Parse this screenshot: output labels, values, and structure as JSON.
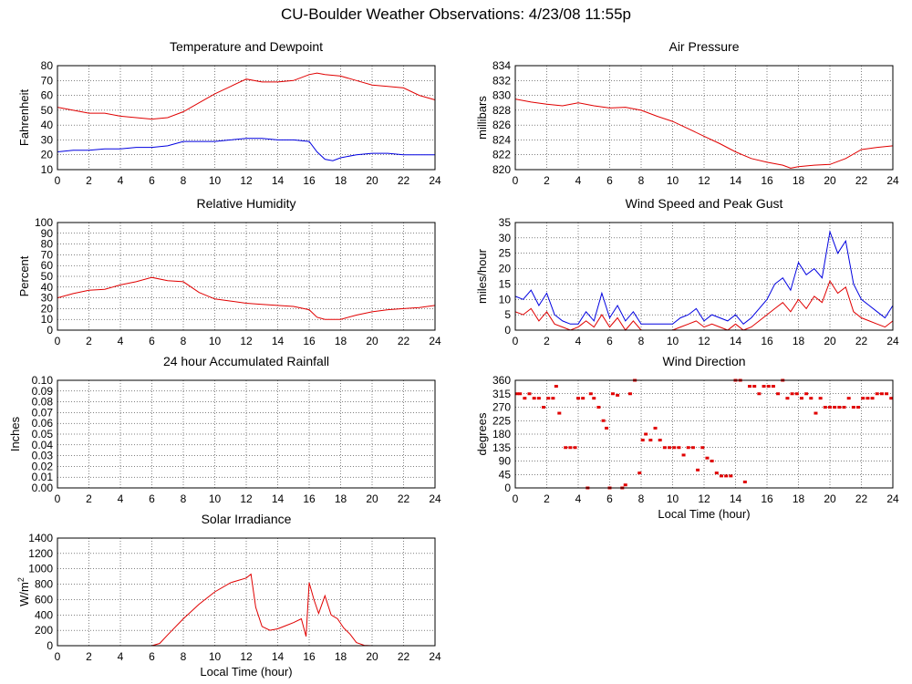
{
  "title": "CU-Boulder Weather Observations: 4/23/08 11:55p",
  "colors": {
    "red": "#e00000",
    "blue": "#0000e0"
  },
  "x_ticks": [
    "0",
    "2",
    "4",
    "6",
    "8",
    "10",
    "12",
    "14",
    "16",
    "18",
    "20",
    "22",
    "24"
  ],
  "chart_data": [
    {
      "id": "temperature",
      "type": "line",
      "title": "Temperature and Dewpoint",
      "xlabel": "",
      "ylabel": "Fahrenheit",
      "xlim": [
        0,
        24
      ],
      "ylim": [
        10,
        80
      ],
      "yticks": [
        "10",
        "20",
        "30",
        "40",
        "50",
        "60",
        "70",
        "80"
      ],
      "series": [
        {
          "color": "#e00000",
          "x": [
            0,
            1,
            2,
            3,
            4,
            5,
            6,
            7,
            8,
            9,
            10,
            11,
            12,
            13,
            14,
            15,
            16,
            16.5,
            17,
            18,
            19,
            20,
            21,
            22,
            23,
            24
          ],
          "y": [
            52,
            50,
            48,
            48,
            46,
            45,
            44,
            45,
            49,
            55,
            61,
            66,
            71,
            69,
            69,
            70,
            74,
            75,
            74,
            73,
            70,
            67,
            66,
            65,
            60,
            57
          ]
        },
        {
          "color": "#0000e0",
          "x": [
            0,
            1,
            2,
            3,
            4,
            5,
            6,
            7,
            8,
            9,
            10,
            11,
            12,
            13,
            14,
            15,
            16,
            16.5,
            17,
            17.5,
            18,
            19,
            20,
            21,
            22,
            23,
            24
          ],
          "y": [
            22,
            23,
            23,
            24,
            24,
            25,
            25,
            26,
            29,
            29,
            29,
            30,
            31,
            31,
            30,
            30,
            29,
            22,
            17,
            16,
            18,
            20,
            21,
            21,
            20,
            20,
            20
          ]
        }
      ]
    },
    {
      "id": "pressure",
      "type": "line",
      "title": "Air Pressure",
      "xlabel": "",
      "ylabel": "millibars",
      "xlim": [
        0,
        24
      ],
      "ylim": [
        820,
        834
      ],
      "yticks": [
        "820",
        "822",
        "824",
        "826",
        "828",
        "830",
        "832",
        "834"
      ],
      "series": [
        {
          "color": "#e00000",
          "x": [
            0,
            1,
            2,
            3,
            4,
            5,
            6,
            7,
            8,
            9,
            10,
            11,
            12,
            13,
            14,
            15,
            16,
            17,
            17.5,
            18,
            19,
            20,
            21,
            22,
            23,
            24
          ],
          "y": [
            829.5,
            829.1,
            828.8,
            828.6,
            829,
            828.6,
            828.3,
            828.4,
            828,
            827.2,
            826.5,
            825.5,
            824.5,
            823.5,
            822.4,
            821.5,
            821,
            820.6,
            820.2,
            820.4,
            820.6,
            820.7,
            821.5,
            822.7,
            823,
            823.2
          ]
        }
      ]
    },
    {
      "id": "humidity",
      "type": "line",
      "title": "Relative Humidity",
      "xlabel": "",
      "ylabel": "Percent",
      "xlim": [
        0,
        24
      ],
      "ylim": [
        0,
        100
      ],
      "yticks": [
        "0",
        "10",
        "20",
        "30",
        "40",
        "50",
        "60",
        "70",
        "80",
        "90",
        "100"
      ],
      "series": [
        {
          "color": "#e00000",
          "x": [
            0,
            1,
            2,
            3,
            4,
            5,
            6,
            7,
            8,
            9,
            10,
            11,
            12,
            13,
            14,
            15,
            16,
            16.5,
            17,
            18,
            19,
            20,
            21,
            22,
            23,
            24
          ],
          "y": [
            30,
            34,
            37,
            38,
            42,
            45,
            49,
            46,
            45,
            35,
            29,
            27,
            25,
            24,
            23,
            22,
            19,
            12,
            10,
            10,
            14,
            17,
            19,
            20,
            21,
            23
          ]
        }
      ]
    },
    {
      "id": "wind-speed",
      "type": "line",
      "title": "Wind Speed and Peak Gust",
      "xlabel": "",
      "ylabel": "miles/hour",
      "xlim": [
        0,
        24
      ],
      "ylim": [
        0,
        35
      ],
      "yticks": [
        "0",
        "5",
        "10",
        "15",
        "20",
        "25",
        "30",
        "35"
      ],
      "series": [
        {
          "color": "#0000e0",
          "x": [
            0,
            0.5,
            1,
            1.5,
            2,
            2.5,
            3,
            3.5,
            4,
            4.5,
            5,
            5.5,
            6,
            6.5,
            7,
            7.5,
            8,
            9,
            10,
            10.5,
            11,
            11.5,
            12,
            12.5,
            13,
            13.5,
            14,
            14.5,
            15,
            15.5,
            16,
            16.5,
            17,
            17.5,
            18,
            18.5,
            19,
            19.5,
            20,
            20.5,
            21,
            21.5,
            22,
            22.5,
            23,
            23.5,
            24
          ],
          "y": [
            11,
            10,
            13,
            8,
            12,
            5,
            3,
            2,
            2,
            6,
            3,
            12,
            4,
            8,
            3,
            6,
            2,
            2,
            2,
            4,
            5,
            7,
            3,
            5,
            4,
            3,
            5,
            2,
            4,
            7,
            10,
            15,
            17,
            13,
            22,
            18,
            20,
            17,
            32,
            25,
            29,
            15,
            10,
            8,
            6,
            4,
            8
          ]
        },
        {
          "color": "#e00000",
          "x": [
            0,
            0.5,
            1,
            1.5,
            2,
            2.5,
            3,
            3.5,
            4,
            4.5,
            5,
            5.5,
            6,
            6.5,
            7,
            7.5,
            8,
            9,
            10,
            10.5,
            11,
            11.5,
            12,
            12.5,
            13,
            13.5,
            14,
            14.5,
            15,
            15.5,
            16,
            16.5,
            17,
            17.5,
            18,
            18.5,
            19,
            19.5,
            20,
            20.5,
            21,
            21.5,
            22,
            22.5,
            23,
            23.5,
            24
          ],
          "y": [
            6,
            5,
            7,
            3,
            6,
            2,
            1,
            0,
            1,
            3,
            1,
            5,
            1,
            4,
            0,
            3,
            0,
            0,
            0,
            1,
            2,
            3,
            1,
            2,
            1,
            0,
            2,
            0,
            1,
            3,
            5,
            7,
            9,
            6,
            10,
            7,
            11,
            9,
            16,
            12,
            14,
            6,
            4,
            3,
            2,
            1,
            3
          ]
        }
      ]
    },
    {
      "id": "rainfall",
      "type": "line",
      "title": "24 hour Accumulated Rainfall",
      "xlabel": "",
      "ylabel": "Inches",
      "xlim": [
        0,
        24
      ],
      "ylim": [
        0,
        0.1
      ],
      "yticks": [
        "0.00",
        "0.01",
        "0.02",
        "0.03",
        "0.04",
        "0.05",
        "0.06",
        "0.07",
        "0.08",
        "0.09",
        "0.10"
      ],
      "series": [
        {
          "color": "#e00000",
          "x": [
            0,
            24
          ],
          "y": [
            0,
            0
          ]
        }
      ]
    },
    {
      "id": "wind-direction",
      "type": "scatter",
      "title": "Wind Direction",
      "xlabel": "Local Time (hour)",
      "ylabel": "degrees",
      "xlim": [
        0,
        24
      ],
      "ylim": [
        0,
        360
      ],
      "yticks": [
        "0",
        "45",
        "90",
        "135",
        "180",
        "225",
        "270",
        "315",
        "360"
      ],
      "series": [
        {
          "color": "#e00000",
          "x": [
            0.1,
            0.3,
            0.6,
            0.9,
            1.2,
            1.5,
            1.8,
            2.1,
            2.4,
            2.6,
            2.8,
            3.2,
            3.5,
            3.8,
            4,
            4.3,
            4.6,
            4.8,
            5,
            5.3,
            5.6,
            5.8,
            6,
            6.2,
            6.5,
            6.8,
            7,
            7.3,
            7.6,
            7.9,
            8.1,
            8.3,
            8.6,
            8.9,
            9.2,
            9.5,
            9.8,
            10.1,
            10.4,
            10.7,
            11,
            11.3,
            11.6,
            11.9,
            12.2,
            12.5,
            12.8,
            13.1,
            13.4,
            13.7,
            14,
            14.3,
            14.6,
            14.9,
            15.2,
            15.5,
            15.8,
            16.1,
            16.4,
            16.7,
            17,
            17.3,
            17.6,
            17.9,
            18.2,
            18.5,
            18.8,
            19.1,
            19.4,
            19.7,
            20,
            20.3,
            20.6,
            20.9,
            21.2,
            21.5,
            21.8,
            22.1,
            22.4,
            22.7,
            23,
            23.3,
            23.6,
            23.9
          ],
          "y": [
            315,
            315,
            300,
            315,
            300,
            300,
            270,
            300,
            300,
            340,
            250,
            135,
            135,
            135,
            300,
            300,
            0,
            315,
            300,
            270,
            225,
            200,
            0,
            315,
            310,
            0,
            10,
            315,
            360,
            50,
            160,
            180,
            160,
            200,
            160,
            135,
            135,
            135,
            135,
            110,
            135,
            135,
            60,
            135,
            100,
            90,
            50,
            40,
            40,
            40,
            360,
            360,
            20,
            340,
            340,
            315,
            340,
            340,
            340,
            315,
            360,
            300,
            315,
            315,
            300,
            315,
            300,
            250,
            300,
            270,
            270,
            270,
            270,
            270,
            300,
            270,
            270,
            300,
            300,
            300,
            315,
            315,
            315,
            300
          ]
        }
      ]
    },
    {
      "id": "solar",
      "type": "line",
      "title": "Solar Irradiance",
      "xlabel": "Local Time (hour)",
      "ylabel": "W/m",
      "ylabel_sup": "2",
      "xlim": [
        0,
        24
      ],
      "ylim": [
        0,
        1400
      ],
      "yticks": [
        "0",
        "200",
        "400",
        "600",
        "800",
        "1000",
        "1200",
        "1400"
      ],
      "series": [
        {
          "color": "#e00000",
          "x": [
            0,
            6,
            6.5,
            7,
            8,
            9,
            10,
            11,
            12,
            12.3,
            12.6,
            13,
            13.5,
            14,
            14.5,
            15,
            15.5,
            15.8,
            16,
            16.3,
            16.6,
            17,
            17.4,
            17.8,
            18.2,
            18.6,
            19,
            19.5,
            20,
            24
          ],
          "y": [
            0,
            0,
            30,
            140,
            350,
            540,
            700,
            820,
            880,
            930,
            500,
            250,
            200,
            220,
            260,
            300,
            350,
            120,
            820,
            600,
            420,
            650,
            400,
            350,
            230,
            150,
            40,
            5,
            0,
            0
          ]
        }
      ]
    }
  ]
}
